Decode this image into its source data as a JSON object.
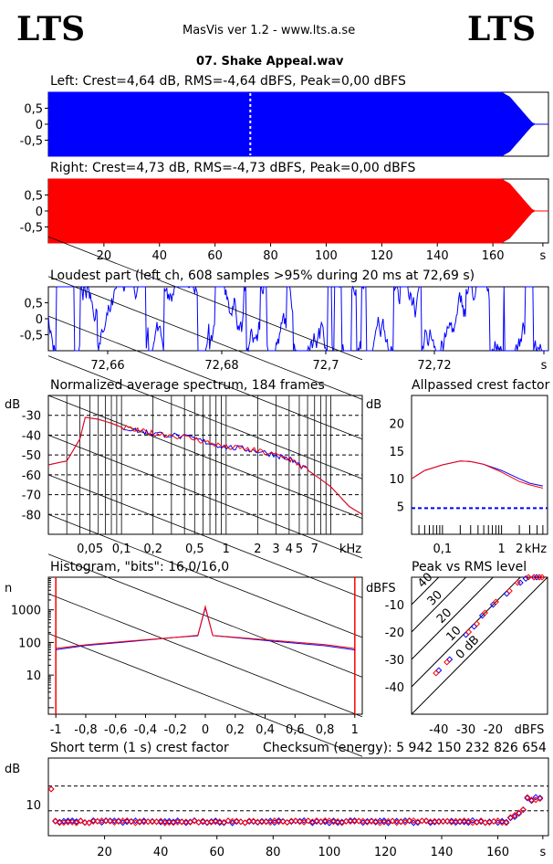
{
  "header": {
    "logo_left": "LTS",
    "logo_right": "LTS",
    "app_title": "MasVis ver 1.2 - www.lts.a.se",
    "file_name": "07. Shake Appeal.wav"
  },
  "colors": {
    "left": "#0000ff",
    "right": "#ff0000",
    "grid": "#000000"
  },
  "chart_data": [
    {
      "id": "left-waveform",
      "type": "area",
      "title": "Left: Crest=4,64 dB, RMS=-4,64 dBFS, Peak=0,00 dBFS",
      "yticks": [
        "0,5",
        "0",
        "-0,5"
      ],
      "ylim": [
        -1,
        1
      ],
      "xlim": [
        0,
        180
      ],
      "marker_s": 72.69,
      "envelope": [
        [
          0,
          1
        ],
        [
          163,
          1
        ],
        [
          166,
          0.85
        ],
        [
          169,
          0.55
        ],
        [
          172,
          0.25
        ],
        [
          174,
          0.05
        ],
        [
          175,
          0
        ]
      ]
    },
    {
      "id": "right-waveform",
      "type": "area",
      "title": "Right: Crest=4,73 dB, RMS=-4,73 dBFS, Peak=0,00 dBFS",
      "yticks": [
        "0,5",
        "0",
        "-0,5"
      ],
      "ylim": [
        -1,
        1
      ],
      "xlim": [
        0,
        180
      ],
      "xticks": [
        "20",
        "40",
        "60",
        "80",
        "100",
        "120",
        "140",
        "160",
        "s"
      ],
      "envelope": [
        [
          0,
          1
        ],
        [
          163,
          1
        ],
        [
          166,
          0.85
        ],
        [
          169,
          0.55
        ],
        [
          172,
          0.25
        ],
        [
          174,
          0.05
        ],
        [
          175,
          0
        ]
      ]
    },
    {
      "id": "loudest-part",
      "type": "line",
      "title": "Loudest part (left  ch, 608 samples >95% during 20 ms at 72,69 s)",
      "yticks": [
        "0,5",
        "0",
        "-0,5"
      ],
      "ylim": [
        -1,
        1
      ],
      "xticks": [
        "72,66",
        "72,68",
        "72,7",
        "72,72",
        "s"
      ]
    },
    {
      "id": "spectrum",
      "type": "line",
      "title": "Normalized average spectrum, 184 frames",
      "ylabel": "dB",
      "yticks": [
        "-30",
        "-40",
        "-50",
        "-60",
        "-70",
        "-80"
      ],
      "xticks": [
        "0,05",
        "0,1",
        "0,2",
        "0,5",
        "1",
        "2",
        "3",
        "4",
        "5",
        "7",
        "kHz"
      ],
      "xlim_khz": [
        0.02,
        20
      ],
      "ylim": [
        -90,
        -20
      ],
      "series": [
        {
          "values": [
            [
              0.02,
              -55
            ],
            [
              0.03,
              -53
            ],
            [
              0.04,
              -42
            ],
            [
              0.045,
              -31
            ],
            [
              0.06,
              -32
            ],
            [
              0.08,
              -34
            ],
            [
              0.1,
              -36
            ],
            [
              0.15,
              -38
            ],
            [
              0.2,
              -39
            ],
            [
              0.3,
              -40
            ],
            [
              0.5,
              -42
            ],
            [
              0.7,
              -44
            ],
            [
              1,
              -46
            ],
            [
              1.5,
              -47
            ],
            [
              2,
              -48
            ],
            [
              3,
              -50
            ],
            [
              4,
              -52
            ],
            [
              5,
              -55
            ],
            [
              7,
              -60
            ],
            [
              10,
              -66
            ],
            [
              15,
              -76
            ],
            [
              20,
              -80
            ]
          ]
        },
        {
          "values": [
            [
              0.02,
              -55
            ],
            [
              0.03,
              -53
            ],
            [
              0.04,
              -42
            ],
            [
              0.045,
              -31
            ],
            [
              0.06,
              -32
            ],
            [
              0.08,
              -34
            ],
            [
              0.1,
              -36
            ],
            [
              0.15,
              -38
            ],
            [
              0.2,
              -39
            ],
            [
              0.3,
              -40
            ],
            [
              0.5,
              -42
            ],
            [
              0.7,
              -44
            ],
            [
              1,
              -46
            ],
            [
              1.5,
              -47
            ],
            [
              2,
              -48
            ],
            [
              3,
              -50
            ],
            [
              4,
              -52
            ],
            [
              5,
              -55
            ],
            [
              7,
              -60
            ],
            [
              10,
              -66
            ],
            [
              15,
              -76
            ],
            [
              20,
              -80
            ]
          ]
        }
      ]
    },
    {
      "id": "allpassed-crest",
      "type": "line",
      "title": "Allpassed crest factor",
      "ylabel": "dB",
      "yticks": [
        "20",
        "15",
        "10",
        "5"
      ],
      "xticks": [
        "0,1",
        "1",
        "2",
        "kHz"
      ],
      "ylim": [
        0,
        25
      ],
      "reference_db": 4.7,
      "series": [
        {
          "values": [
            [
              0.03,
              10
            ],
            [
              0.05,
              11.5
            ],
            [
              0.1,
              12.5
            ],
            [
              0.2,
              13.2
            ],
            [
              0.3,
              13.1
            ],
            [
              0.5,
              12.6
            ],
            [
              1,
              11.5
            ],
            [
              2,
              10
            ],
            [
              3,
              9.2
            ],
            [
              5,
              8.7
            ]
          ]
        },
        {
          "values": [
            [
              0.03,
              10
            ],
            [
              0.05,
              11.5
            ],
            [
              0.1,
              12.5
            ],
            [
              0.2,
              13.2
            ],
            [
              0.3,
              13.1
            ],
            [
              0.5,
              12.6
            ],
            [
              1,
              11.2
            ],
            [
              2,
              9.5
            ],
            [
              3,
              8.9
            ],
            [
              5,
              8.3
            ]
          ]
        }
      ]
    },
    {
      "id": "histogram",
      "type": "line",
      "title": "Histogram, \"bits\": 16,0/16,0",
      "ylabel": "n",
      "yticks": [
        "1000",
        "100",
        "10"
      ],
      "xticks": [
        "-1",
        "-0,8",
        "-0,6",
        "-0,4",
        "-0,2",
        "0",
        "0,2",
        "0,4",
        "0,6",
        "0,8",
        "1"
      ],
      "xlim": [
        -1.05,
        1.05
      ],
      "series": [
        {
          "values": [
            [
              -1,
              60
            ],
            [
              -0.8,
              80
            ],
            [
              -0.5,
              105
            ],
            [
              -0.2,
              140
            ],
            [
              -0.05,
              160
            ],
            [
              0,
              1200
            ],
            [
              0.05,
              160
            ],
            [
              0.2,
              140
            ],
            [
              0.5,
              105
            ],
            [
              0.8,
              80
            ],
            [
              1,
              60
            ]
          ]
        },
        {
          "values": [
            [
              -1,
              65
            ],
            [
              -0.8,
              85
            ],
            [
              -0.5,
              110
            ],
            [
              -0.2,
              145
            ],
            [
              -0.05,
              165
            ],
            [
              0,
              1300
            ],
            [
              0.05,
              165
            ],
            [
              0.2,
              145
            ],
            [
              0.5,
              110
            ],
            [
              0.8,
              85
            ],
            [
              1,
              65
            ]
          ]
        }
      ]
    },
    {
      "id": "peak-vs-rms",
      "type": "scatter",
      "title": "Peak vs RMS level",
      "ylabel": "dBFS",
      "xlabel": "dBFS",
      "yticks": [
        "-10",
        "-20",
        "-30",
        "-40"
      ],
      "xticks": [
        "-40",
        "-30",
        "-20"
      ],
      "diagonal_labels": [
        "40",
        "30",
        "20",
        "10",
        "0 dB"
      ],
      "xlim": [
        -50,
        0
      ],
      "ylim": [
        -50,
        0
      ],
      "series": [
        {
          "values": [
            [
              -40,
              -34
            ],
            [
              -36,
              -30
            ],
            [
              -30,
              -21
            ],
            [
              -27,
              -18
            ],
            [
              -24,
              -14
            ],
            [
              -20,
              -10
            ],
            [
              -15,
              -6
            ],
            [
              -10,
              -2
            ],
            [
              -8,
              -0.5
            ],
            [
              -5,
              0
            ],
            [
              -4,
              0
            ],
            [
              -3,
              0
            ]
          ]
        },
        {
          "values": [
            [
              -41,
              -35
            ],
            [
              -37,
              -31
            ],
            [
              -29,
              -20
            ],
            [
              -26,
              -17
            ],
            [
              -23,
              -13
            ],
            [
              -19,
              -9
            ],
            [
              -14,
              -5
            ],
            [
              -11,
              -2
            ],
            [
              -7,
              0
            ],
            [
              -5,
              0
            ],
            [
              -3,
              0
            ],
            [
              -2,
              0
            ]
          ]
        }
      ]
    },
    {
      "id": "short-term-crest",
      "type": "scatter",
      "title": "Short term (1 s) crest factor",
      "checksum": "Checksum (energy):  5 942 150 232 826 654",
      "ylabel": "dB",
      "yticks": [
        "10"
      ],
      "xticks": [
        "20",
        "40",
        "60",
        "80",
        "100",
        "120",
        "140",
        "160",
        "s"
      ],
      "xlim": [
        0,
        178
      ],
      "ylim": [
        0,
        25
      ]
    }
  ]
}
